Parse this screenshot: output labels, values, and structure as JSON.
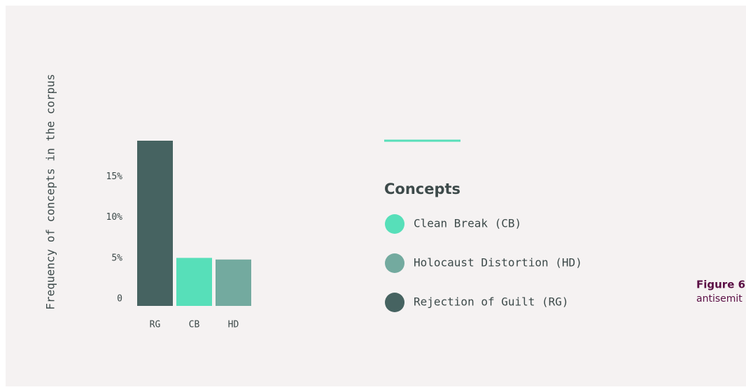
{
  "chart_data": {
    "type": "bar",
    "y_label": "Frequency of concepts in the corpus",
    "categories": [
      "RG",
      "CB",
      "HD"
    ],
    "values": [
      20.3,
      5.9,
      5.7
    ],
    "colors": [
      "#466361",
      "#57dfb9",
      "#73aa9f"
    ],
    "ylim": [
      0,
      20.3
    ],
    "yticks": [
      0,
      {
        "value": 5,
        "label": "5%"
      },
      {
        "value": 10,
        "label": "10%"
      },
      {
        "value": 15,
        "label": "15%"
      }
    ],
    "legend": {
      "title": "Concepts",
      "items": [
        {
          "name": "Clean Break (CB)",
          "color": "#57dfb9"
        },
        {
          "name": "Holocaust Distortion (HD)",
          "color": "#73aa9f"
        },
        {
          "name": "Rejection of Guilt (RG)",
          "color": "#466361"
        }
      ]
    },
    "caption": {
      "title": "Figure 6",
      "text": "antisemit"
    }
  }
}
